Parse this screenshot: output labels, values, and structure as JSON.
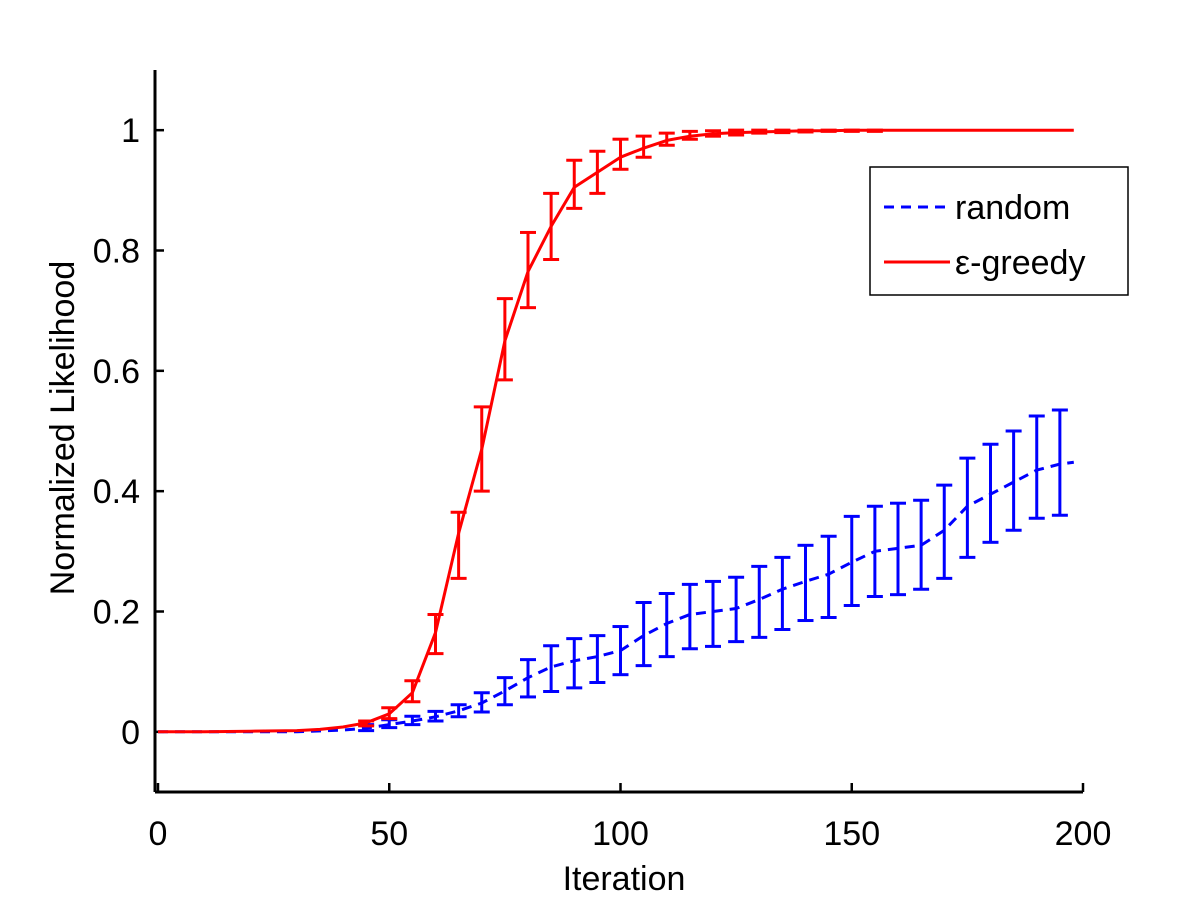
{
  "chart_data": {
    "type": "line",
    "title": "",
    "xlabel": "Iteration",
    "ylabel": "Normalized Likelihood",
    "xlim": [
      0,
      200
    ],
    "ylim": [
      -0.1,
      1.1
    ],
    "xticks": [
      0,
      50,
      100,
      150,
      200
    ],
    "yticks": [
      0,
      0.2,
      0.4,
      0.6,
      0.8,
      1
    ],
    "xtick_labels": [
      "0",
      "50",
      "100",
      "150",
      "200"
    ],
    "ytick_labels": [
      "0",
      "0.2",
      "0.4",
      "0.6",
      "0.8",
      "1"
    ],
    "grid": false,
    "legend_position": "top-right",
    "series": [
      {
        "name": "random",
        "color": "#0000ff",
        "style": "dashed",
        "x": [
          0,
          10,
          20,
          30,
          40,
          45,
          50,
          55,
          60,
          65,
          70,
          75,
          80,
          85,
          90,
          95,
          100,
          105,
          110,
          115,
          120,
          125,
          130,
          135,
          140,
          145,
          150,
          155,
          160,
          165,
          170,
          175,
          180,
          185,
          190,
          195,
          198
        ],
        "y": [
          0.0,
          0.0,
          0.0,
          0.0,
          0.003,
          0.006,
          0.012,
          0.018,
          0.025,
          0.035,
          0.048,
          0.068,
          0.09,
          0.108,
          0.118,
          0.125,
          0.135,
          0.16,
          0.18,
          0.195,
          0.2,
          0.205,
          0.22,
          0.237,
          0.25,
          0.262,
          0.282,
          0.3,
          0.305,
          0.31,
          0.335,
          0.375,
          0.395,
          0.415,
          0.435,
          0.445,
          0.448
        ],
        "errorbars": {
          "x": [
            45,
            50,
            55,
            60,
            65,
            70,
            75,
            80,
            85,
            90,
            95,
            100,
            105,
            110,
            115,
            120,
            125,
            130,
            135,
            140,
            145,
            150,
            155,
            160,
            165,
            170,
            175,
            180,
            185,
            190,
            195
          ],
          "low": [
            0.002,
            0.007,
            0.012,
            0.018,
            0.025,
            0.033,
            0.045,
            0.058,
            0.067,
            0.073,
            0.082,
            0.095,
            0.11,
            0.125,
            0.138,
            0.142,
            0.15,
            0.157,
            0.17,
            0.185,
            0.19,
            0.21,
            0.225,
            0.228,
            0.237,
            0.255,
            0.29,
            0.315,
            0.335,
            0.355,
            0.36
          ],
          "high": [
            0.012,
            0.02,
            0.026,
            0.034,
            0.045,
            0.065,
            0.09,
            0.12,
            0.143,
            0.155,
            0.16,
            0.175,
            0.215,
            0.23,
            0.245,
            0.25,
            0.257,
            0.275,
            0.29,
            0.31,
            0.325,
            0.358,
            0.375,
            0.38,
            0.385,
            0.41,
            0.455,
            0.478,
            0.5,
            0.525,
            0.535
          ]
        }
      },
      {
        "name": "ε-greedy",
        "color": "#ff0000",
        "style": "solid",
        "x": [
          0,
          10,
          20,
          30,
          35,
          40,
          45,
          50,
          55,
          60,
          65,
          70,
          75,
          80,
          85,
          90,
          95,
          100,
          105,
          110,
          115,
          120,
          125,
          130,
          135,
          140,
          145,
          150,
          155,
          160,
          170,
          180,
          190,
          198
        ],
        "y": [
          0.0,
          0.0,
          0.001,
          0.002,
          0.004,
          0.008,
          0.015,
          0.03,
          0.065,
          0.165,
          0.33,
          0.47,
          0.65,
          0.765,
          0.84,
          0.905,
          0.93,
          0.955,
          0.97,
          0.983,
          0.99,
          0.994,
          0.996,
          0.997,
          0.998,
          0.999,
          0.999,
          1.0,
          1.0,
          1.0,
          1.0,
          1.0,
          1.0,
          1.0
        ],
        "errorbars": {
          "x": [
            45,
            50,
            55,
            60,
            65,
            70,
            75,
            80,
            85,
            90,
            95,
            100,
            105,
            110,
            115,
            120,
            125,
            130,
            135,
            140,
            145,
            150,
            155
          ],
          "low": [
            0.01,
            0.022,
            0.05,
            0.13,
            0.255,
            0.4,
            0.585,
            0.705,
            0.785,
            0.87,
            0.895,
            0.935,
            0.955,
            0.975,
            0.985,
            0.99,
            0.992,
            0.995,
            0.996,
            0.997,
            0.998,
            0.998,
            0.998
          ],
          "high": [
            0.018,
            0.04,
            0.085,
            0.195,
            0.365,
            0.54,
            0.72,
            0.83,
            0.895,
            0.95,
            0.965,
            0.985,
            0.99,
            0.995,
            0.998,
            0.999,
            1.0,
            1.0,
            1.0,
            1.0,
            1.0,
            1.0,
            1.0
          ]
        }
      }
    ]
  }
}
